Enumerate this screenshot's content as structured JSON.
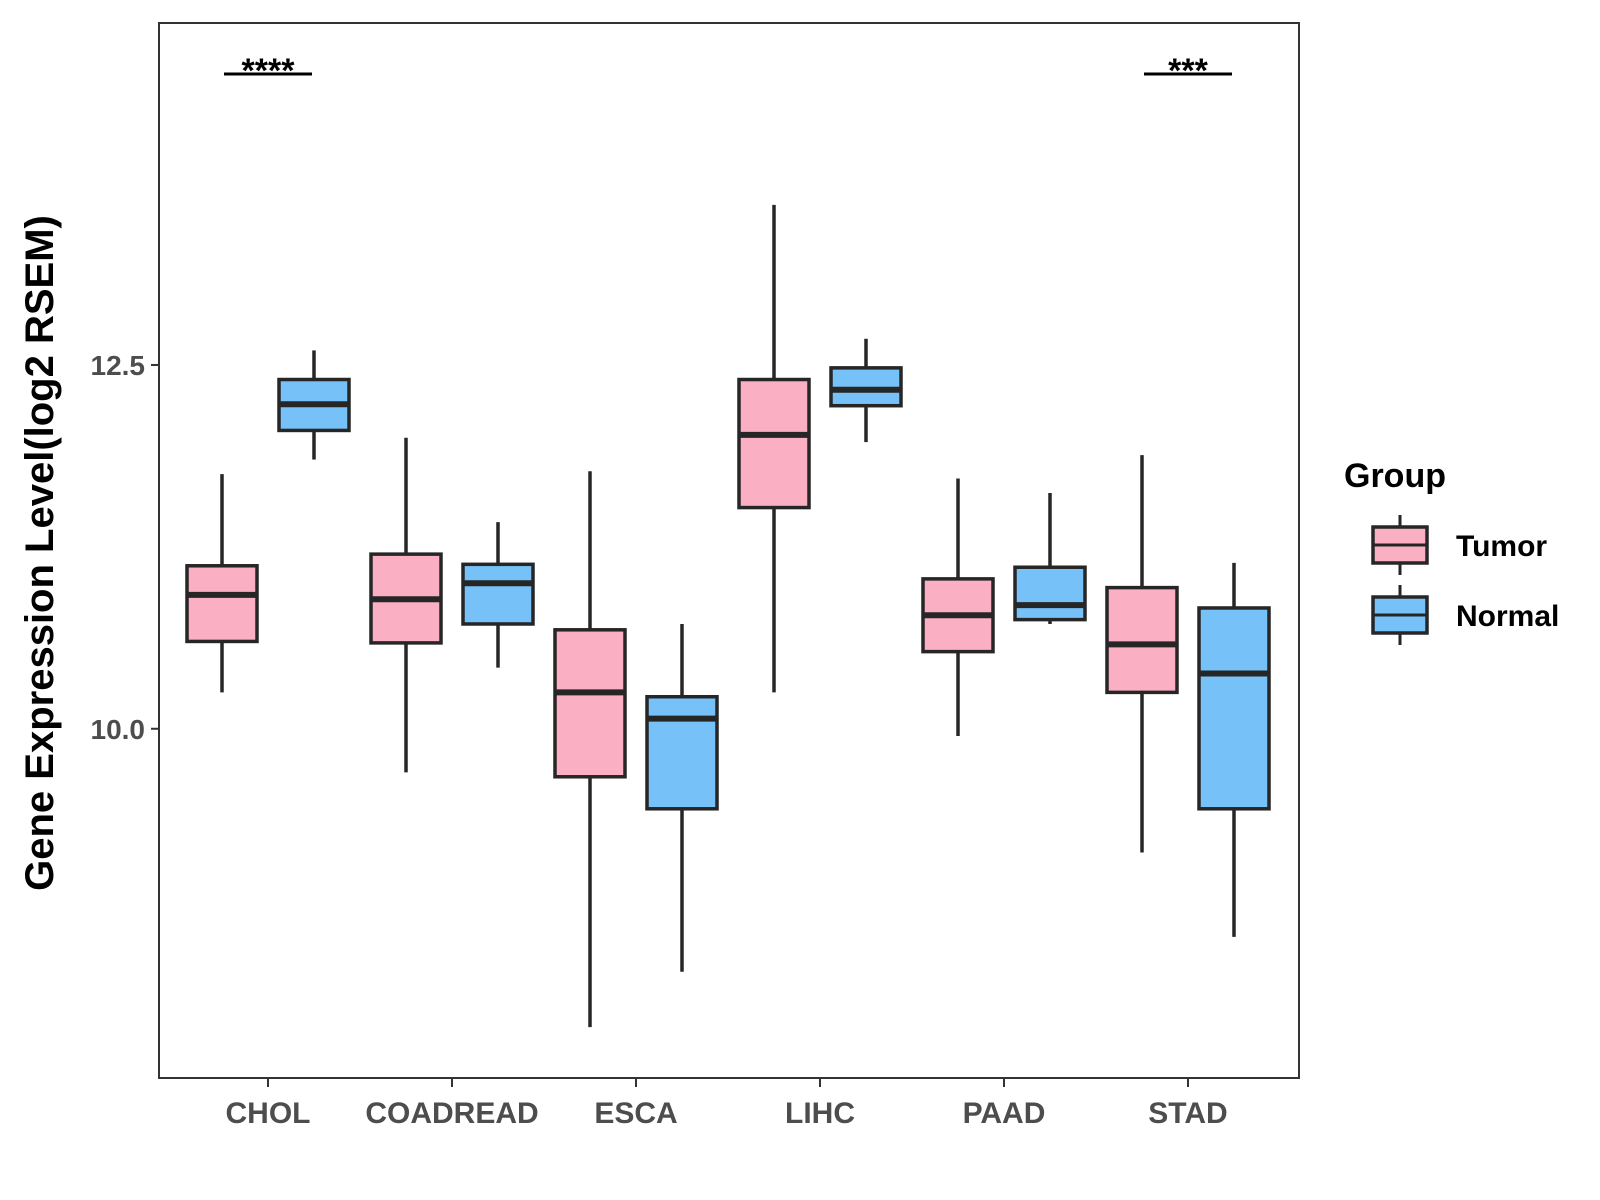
{
  "chart_data": {
    "type": "boxplot",
    "title": "",
    "xlabel": "",
    "ylabel": "Gene Expression Level(log2 RSEM)",
    "ylim": [
      7.6,
      14.85
    ],
    "yticks": [
      10.0,
      12.5
    ],
    "ytick_labels": [
      "10.0",
      "12.5"
    ],
    "grid": false,
    "categories": [
      "CHOL",
      "COADREAD",
      "ESCA",
      "LIHC",
      "PAAD",
      "STAD"
    ],
    "legend": {
      "title": "Group",
      "position": "right",
      "entries": [
        {
          "name": "Tumor",
          "color": "#FBAFC2"
        },
        {
          "name": "Normal",
          "color": "#76C1F7"
        }
      ]
    },
    "series": [
      {
        "name": "Tumor",
        "color": "#FBAFC2",
        "boxes": [
          {
            "category": "CHOL",
            "min": 10.25,
            "q1": 10.6,
            "median": 10.92,
            "q3": 11.12,
            "max": 11.75
          },
          {
            "category": "COADREAD",
            "min": 9.7,
            "q1": 10.59,
            "median": 10.89,
            "q3": 11.2,
            "max": 12.0
          },
          {
            "category": "ESCA",
            "min": 7.95,
            "q1": 9.67,
            "median": 10.25,
            "q3": 10.68,
            "max": 11.77
          },
          {
            "category": "LIHC",
            "min": 10.25,
            "q1": 11.52,
            "median": 12.02,
            "q3": 12.4,
            "max": 13.6
          },
          {
            "category": "PAAD",
            "min": 9.95,
            "q1": 10.53,
            "median": 10.78,
            "q3": 11.03,
            "max": 11.72
          },
          {
            "category": "STAD",
            "min": 9.15,
            "q1": 10.25,
            "median": 10.58,
            "q3": 10.97,
            "max": 11.88
          }
        ]
      },
      {
        "name": "Normal",
        "color": "#76C1F7",
        "boxes": [
          {
            "category": "CHOL",
            "min": 11.85,
            "q1": 12.05,
            "median": 12.23,
            "q3": 12.4,
            "max": 12.6
          },
          {
            "category": "COADREAD",
            "min": 10.42,
            "q1": 10.72,
            "median": 11.0,
            "q3": 11.13,
            "max": 11.42
          },
          {
            "category": "ESCA",
            "min": 8.33,
            "q1": 9.45,
            "median": 10.07,
            "q3": 10.22,
            "max": 10.72
          },
          {
            "category": "LIHC",
            "min": 11.97,
            "q1": 12.22,
            "median": 12.33,
            "q3": 12.48,
            "max": 12.68
          },
          {
            "category": "PAAD",
            "min": 10.72,
            "q1": 10.75,
            "median": 10.85,
            "q3": 11.11,
            "max": 11.62
          },
          {
            "category": "STAD",
            "min": 8.57,
            "q1": 9.45,
            "median": 10.38,
            "q3": 10.83,
            "max": 11.14
          }
        ]
      }
    ],
    "significance": [
      {
        "category": "CHOL",
        "label": "****"
      },
      {
        "category": "STAD",
        "label": "***"
      }
    ]
  }
}
